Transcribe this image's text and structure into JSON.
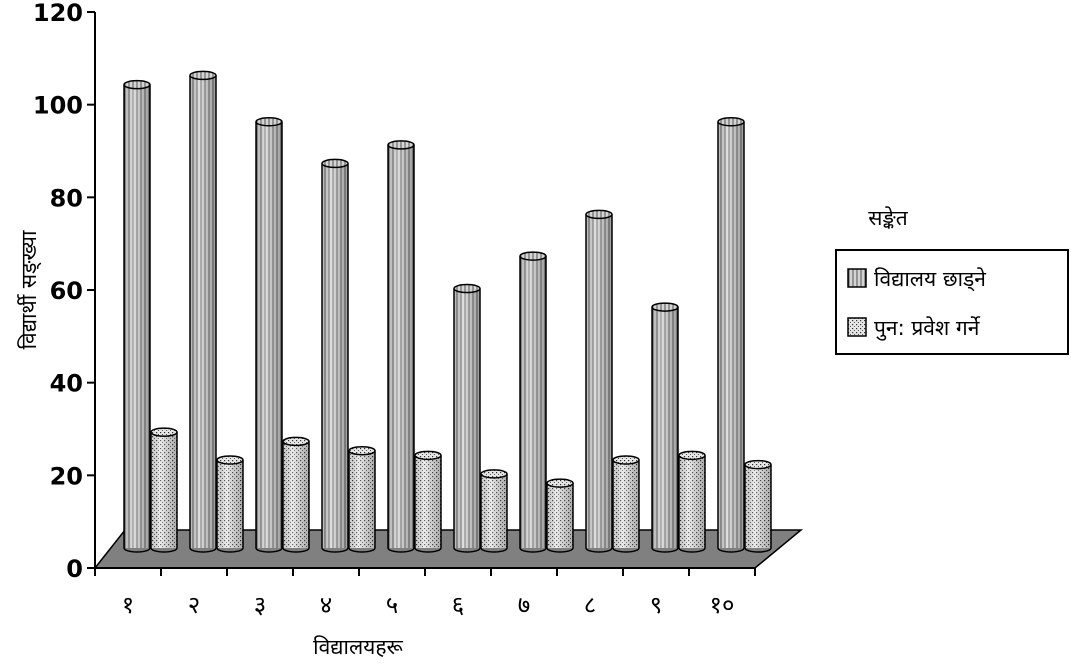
{
  "chart_data": {
    "type": "bar",
    "categories": [
      "१",
      "२",
      "३",
      "४",
      "५",
      "६",
      "७",
      "८",
      "९",
      "१०"
    ],
    "series": [
      {
        "name": "विद्यालय छाड्ने",
        "values": [
          100,
          102,
          92,
          83,
          87,
          56,
          63,
          72,
          52,
          92
        ],
        "color": "#cccccc",
        "pattern": "vertical-lines"
      },
      {
        "name": "पुन: प्रवेश गर्ने",
        "values": [
          25,
          19,
          23,
          21,
          20,
          16,
          14,
          19,
          20,
          18
        ],
        "color": "#dddddd",
        "pattern": "dotted-grid"
      }
    ],
    "y_ticks": [
      "0",
      "20",
      "40",
      "60",
      "80",
      "100",
      "120"
    ],
    "ylim": [
      0,
      120
    ],
    "xlabel": "विद्यालयहरू",
    "ylabel": "विद्यार्थी सङ्ख्या",
    "legend_title": "सङ्केत",
    "legend_position": "right",
    "floor_color": "#808080",
    "grid": false
  }
}
